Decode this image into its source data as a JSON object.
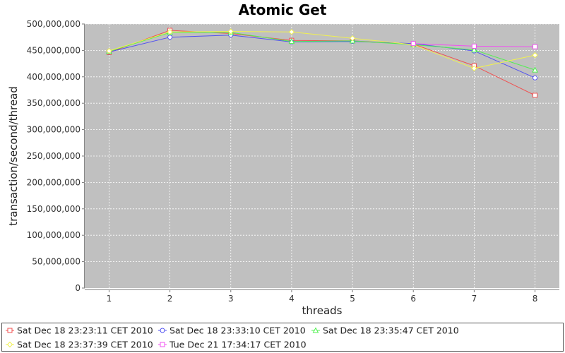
{
  "chart_data": {
    "type": "line",
    "title": "Atomic Get",
    "xlabel": "threads",
    "ylabel": "transaction/second/thread",
    "x": [
      1,
      2,
      3,
      4,
      5,
      6,
      7,
      8
    ],
    "xlim": [
      0.6,
      8.4
    ],
    "ylim": [
      0,
      500000000
    ],
    "yticks": [
      0,
      50000000,
      100000000,
      150000000,
      200000000,
      250000000,
      300000000,
      350000000,
      400000000,
      450000000,
      500000000
    ],
    "ytick_labels": [
      "0",
      "50,000,000",
      "100,000,000",
      "150,000,000",
      "200,000,000",
      "250,000,000",
      "300,000,000",
      "350,000,000",
      "400,000,000",
      "450,000,000",
      "500,000,000"
    ],
    "xtick_labels": [
      "1",
      "2",
      "3",
      "4",
      "5",
      "6",
      "7",
      "8"
    ],
    "grid": true,
    "plot_background": "#c0c0c0",
    "legend_position": "bottom",
    "series": [
      {
        "name": "Sat Dec 18 23:23:11 CET 2010",
        "color": "#f05050",
        "marker": "square",
        "values": [
          446000000,
          488000000,
          482000000,
          469000000,
          468000000,
          462000000,
          421000000,
          365000000
        ]
      },
      {
        "name": "Sat Dec 18 23:33:10 CET 2010",
        "color": "#5050f0",
        "marker": "circle",
        "values": [
          447000000,
          475000000,
          479000000,
          466000000,
          467000000,
          463000000,
          449000000,
          398000000
        ]
      },
      {
        "name": "Sat Dec 18 23:35:47 CET 2010",
        "color": "#50f050",
        "marker": "triangle-up",
        "values": [
          448000000,
          484000000,
          484000000,
          467000000,
          468000000,
          461000000,
          451000000,
          413000000
        ]
      },
      {
        "name": "Sat Dec 18 23:37:39 CET 2010",
        "color": "#f0f050",
        "marker": "diamond",
        "values": [
          449000000,
          485000000,
          486000000,
          485000000,
          473000000,
          461000000,
          416000000,
          441000000
        ]
      },
      {
        "name": "Tue Dec 21 17:34:17 CET 2010",
        "color": "#f050f0",
        "marker": "square",
        "values": [
          null,
          null,
          null,
          null,
          null,
          463000000,
          458000000,
          457000000
        ]
      }
    ]
  }
}
